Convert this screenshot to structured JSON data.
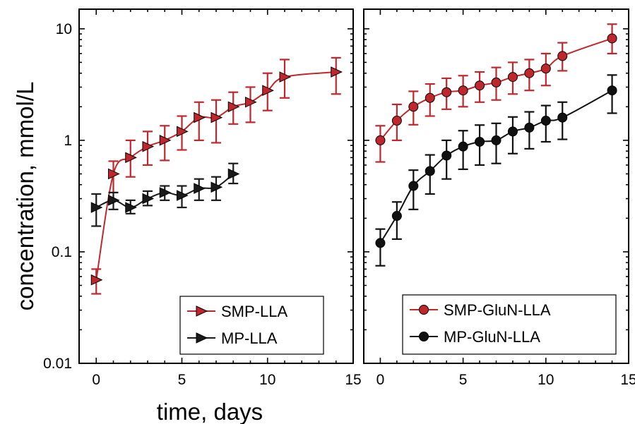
{
  "xlabel": "time, days",
  "ylabel": "concentration, mmol/L",
  "chart_data": [
    {
      "type": "line",
      "yscale": "log",
      "ylim": [
        0.01,
        15
      ],
      "xlim": [
        -1,
        15
      ],
      "xticks": [
        "0",
        "5",
        "10",
        "15"
      ],
      "yticks": [
        "0.01",
        "0.1",
        "1",
        "10"
      ],
      "legend_position": "bottom-right",
      "series": [
        {
          "name": "SMP-LLA",
          "marker": "triangle-right",
          "color": "#c0272d",
          "x": [
            0,
            1,
            2,
            3,
            4,
            5,
            6,
            7,
            8,
            9,
            10,
            11,
            14
          ],
          "y": [
            0.056,
            0.5,
            0.7,
            0.88,
            1.0,
            1.2,
            1.6,
            1.6,
            2.0,
            2.2,
            2.8,
            3.7,
            4.1
          ],
          "err_low": [
            0.042,
            0.34,
            0.47,
            0.6,
            0.66,
            0.82,
            1.0,
            0.95,
            1.4,
            1.45,
            1.85,
            2.4,
            2.6
          ],
          "err_high": [
            0.07,
            0.65,
            1.0,
            1.2,
            1.35,
            1.65,
            2.2,
            2.3,
            2.7,
            3.0,
            4.0,
            5.3,
            5.5
          ]
        },
        {
          "name": "MP-LLA",
          "marker": "triangle-right",
          "color": "#1a1a1a",
          "x": [
            0,
            1,
            2,
            3,
            4,
            5,
            6,
            7,
            8
          ],
          "y": [
            0.25,
            0.29,
            0.25,
            0.3,
            0.34,
            0.32,
            0.37,
            0.38,
            0.5
          ],
          "err_low": [
            0.17,
            0.24,
            0.22,
            0.26,
            0.29,
            0.25,
            0.29,
            0.29,
            0.41
          ],
          "err_high": [
            0.33,
            0.34,
            0.29,
            0.35,
            0.39,
            0.39,
            0.45,
            0.47,
            0.62
          ]
        }
      ]
    },
    {
      "type": "line",
      "yscale": "log",
      "ylim": [
        0.01,
        15
      ],
      "xlim": [
        -1,
        15
      ],
      "xticks": [
        "0",
        "5",
        "10",
        "15"
      ],
      "yticks": [],
      "legend_position": "bottom-right",
      "series": [
        {
          "name": "SMP-GluN-LLA",
          "marker": "circle",
          "color": "#c0272d",
          "x": [
            0,
            1,
            2,
            3,
            4,
            5,
            6,
            7,
            8,
            9,
            10,
            11,
            14
          ],
          "y": [
            1.0,
            1.5,
            2.0,
            2.4,
            2.7,
            2.8,
            3.1,
            3.3,
            3.7,
            4.0,
            4.4,
            5.7,
            8.2
          ],
          "err_low": [
            0.64,
            1.0,
            1.38,
            1.65,
            1.9,
            2.0,
            2.2,
            2.3,
            2.6,
            2.8,
            3.1,
            4.2,
            6.0
          ],
          "err_high": [
            1.35,
            2.1,
            2.75,
            3.2,
            3.6,
            3.8,
            4.1,
            4.5,
            5.0,
            5.3,
            6.0,
            7.5,
            11.0
          ]
        },
        {
          "name": "MP-GluN-LLA",
          "marker": "circle",
          "color": "#111111",
          "x": [
            0,
            1,
            2,
            3,
            4,
            5,
            6,
            7,
            8,
            9,
            10,
            11,
            14
          ],
          "y": [
            0.12,
            0.21,
            0.39,
            0.53,
            0.73,
            0.88,
            0.97,
            1.0,
            1.2,
            1.3,
            1.5,
            1.6,
            2.8
          ],
          "err_low": [
            0.075,
            0.13,
            0.24,
            0.33,
            0.45,
            0.55,
            0.6,
            0.62,
            0.76,
            0.84,
            0.97,
            1.02,
            1.75
          ],
          "err_high": [
            0.16,
            0.28,
            0.54,
            0.74,
            1.0,
            1.22,
            1.37,
            1.42,
            1.62,
            1.8,
            2.05,
            2.2,
            3.85
          ]
        }
      ]
    }
  ]
}
